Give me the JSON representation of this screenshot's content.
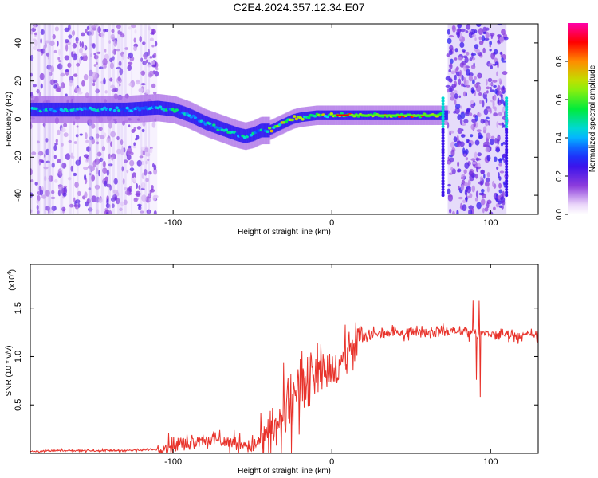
{
  "title": "C2E4.2024.357.12.34.E07",
  "chart_data": [
    {
      "type": "heatmap",
      "xlabel": "Height of straight line (km)",
      "ylabel": "Frequency (Hz)",
      "xlim": [
        -190,
        130
      ],
      "ylim": [
        -50,
        50
      ],
      "xticks": [
        -100,
        0,
        100
      ],
      "yticks": [
        -40,
        -20,
        0,
        20,
        40
      ],
      "colorbar": {
        "label": "Normalized spectral amplitude",
        "range": [
          0,
          1
        ],
        "ticks": [
          0.0,
          0.2,
          0.4,
          0.6,
          0.8
        ]
      },
      "ridge": {
        "x": [
          -190,
          -170,
          -150,
          -130,
          -110,
          -100,
          -90,
          -80,
          -70,
          -60,
          -55,
          -50,
          -45,
          -40,
          -35,
          -30,
          -25,
          -20,
          -10,
          0,
          10,
          20,
          40,
          60,
          70
        ],
        "y": [
          5,
          5,
          5,
          5,
          6,
          5,
          2,
          -2,
          -5,
          -8,
          -9,
          -8,
          -6,
          -6,
          -4,
          -2,
          0,
          1,
          2,
          2,
          2,
          2,
          2,
          2,
          2
        ]
      },
      "noise_regions": [
        [
          -190,
          -110
        ],
        [
          73,
          110
        ]
      ],
      "spikes": [
        70,
        110
      ]
    },
    {
      "type": "line",
      "xlabel": "Height of straight line (km)",
      "ylabel": "SNR (10 * v/v)",
      "multiplier_label": "(x10",
      "multiplier_exp": "4",
      "multiplier_close": ")",
      "xlim": [
        -190,
        130
      ],
      "ylim": [
        0,
        1.95
      ],
      "xticks": [
        -100,
        0,
        100
      ],
      "yticks": [
        0.5,
        1.0,
        1.5
      ],
      "yticklabels": [
        "0.5",
        "1.0",
        "1.5"
      ],
      "color": "#e8322a",
      "series": [
        {
          "x": [
            -190,
            -160,
            -130,
            -110,
            -100,
            -90,
            -80,
            -70,
            -60,
            -50,
            -40,
            -35,
            -30,
            -25,
            -20,
            -15,
            -10,
            -5,
            0,
            5,
            10,
            15,
            20,
            25,
            30,
            40,
            50,
            60,
            70,
            80,
            90,
            93,
            100,
            110,
            120,
            130
          ],
          "y": [
            0.02,
            0.03,
            0.03,
            0.04,
            0.08,
            0.12,
            0.15,
            0.13,
            0.1,
            0.08,
            0.15,
            0.25,
            0.4,
            0.55,
            0.68,
            0.75,
            0.78,
            0.8,
            0.82,
            0.9,
            1.05,
            1.15,
            1.2,
            1.23,
            1.24,
            1.25,
            1.26,
            1.26,
            1.26,
            1.26,
            1.25,
            1.24,
            1.23,
            1.23,
            1.22,
            1.22
          ]
        }
      ]
    }
  ]
}
